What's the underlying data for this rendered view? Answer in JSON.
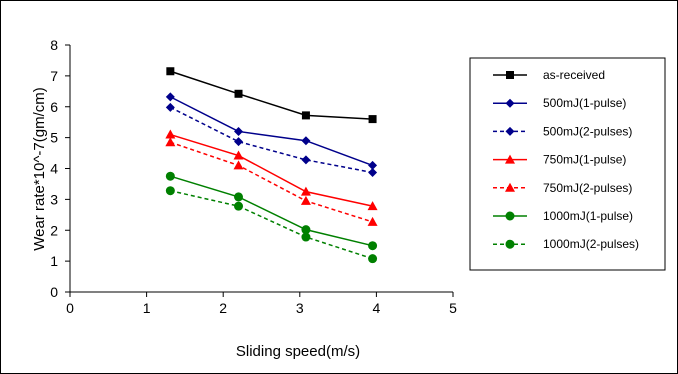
{
  "chart_data": {
    "type": "line",
    "title": "",
    "xlabel": "Sliding speed(m/s)",
    "ylabel": "Wear rate*10^-7(gm/cm)",
    "xlim": [
      0,
      5
    ],
    "ylim": [
      0,
      8
    ],
    "xticks": [
      0,
      1,
      2,
      3,
      4,
      5
    ],
    "yticks": [
      0,
      1,
      2,
      3,
      4,
      5,
      6,
      7,
      8
    ],
    "grid": false,
    "legend_position": "right",
    "x": [
      1.31,
      2.2,
      3.08,
      3.95
    ],
    "series": [
      {
        "name": "as-received",
        "values": [
          7.15,
          6.42,
          5.72,
          5.6
        ],
        "color": "#000000",
        "marker": "square",
        "dash": "solid"
      },
      {
        "name": "500mJ(1-pulse)",
        "values": [
          6.32,
          5.2,
          4.9,
          4.1
        ],
        "color": "#00008b",
        "marker": "diamond",
        "dash": "solid"
      },
      {
        "name": "500mJ(2-pulses)",
        "values": [
          5.98,
          4.87,
          4.28,
          3.87
        ],
        "color": "#00008b",
        "marker": "diamond",
        "dash": "dashed"
      },
      {
        "name": "750mJ(1-pulse)",
        "values": [
          5.1,
          4.42,
          3.25,
          2.78
        ],
        "color": "#ff0000",
        "marker": "triangle",
        "dash": "solid"
      },
      {
        "name": "750mJ(2-pulses)",
        "values": [
          4.85,
          4.1,
          2.95,
          2.27
        ],
        "color": "#ff0000",
        "marker": "triangle",
        "dash": "dashed"
      },
      {
        "name": "1000mJ(1-pulse)",
        "values": [
          3.75,
          3.08,
          2.02,
          1.5
        ],
        "color": "#008000",
        "marker": "circle",
        "dash": "solid"
      },
      {
        "name": "1000mJ(2-pulses)",
        "values": [
          3.28,
          2.78,
          1.78,
          1.08
        ],
        "color": "#008000",
        "marker": "circle",
        "dash": "dashed"
      }
    ]
  }
}
